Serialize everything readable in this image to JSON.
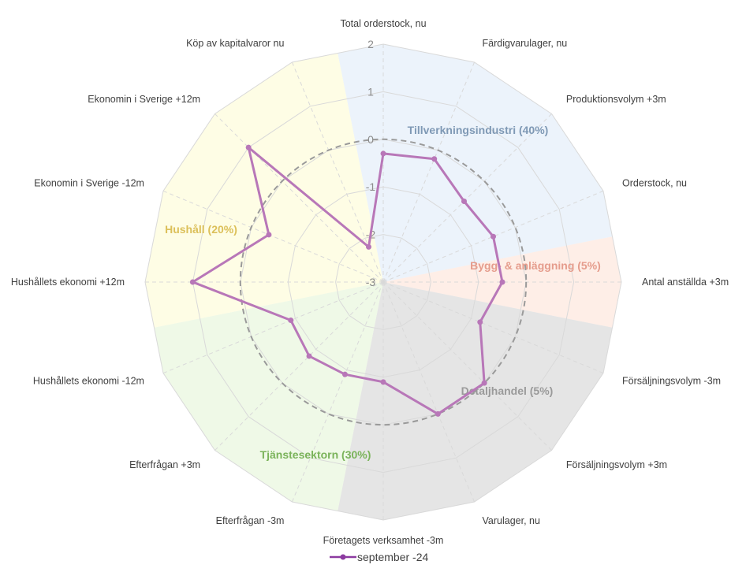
{
  "chart_data": {
    "type": "radar",
    "axes": [
      "Total orderstock, nu",
      "Färdigvarulager, nu",
      "Produktionsvolym +3m",
      "Orderstock, nu",
      "Antal anställda +3m",
      "Försäljningsvolym -3m",
      "Försäljningsvolym +3m",
      "Varulager, nu",
      "Företagets verksamhet -3m",
      "Efterfrågan -3m",
      "Efterfrågan +3m",
      "Hushållets ekonomi -12m",
      "Hushållets ekonomi +12m",
      "Ekonomin i Sverige -12m",
      "Ekonomin i Sverige +12m",
      "Köp av kapitalvaror nu"
    ],
    "ticks": [
      "2",
      "1",
      "0",
      "-1",
      "-2",
      "-3"
    ],
    "rmin": -3,
    "rmax": 2,
    "series": [
      {
        "name": "september -24",
        "color": "#b877b8",
        "values": [
          -0.3,
          -0.2,
          -0.6,
          -0.5,
          -0.5,
          -0.8,
          0.0,
          0.0,
          -0.9,
          -0.9,
          -0.8,
          -0.9,
          1.0,
          -0.4,
          1.0,
          -2.2
        ]
      }
    ],
    "reference_ring": 0,
    "sectors": [
      {
        "label": "Tillverkningsindustri (40%)",
        "color": "#7f99b5",
        "fill": "#dce9f7"
      },
      {
        "label": "Bygg- & anläggning (5%)",
        "color": "#e59c8c",
        "fill": "#fde0d3"
      },
      {
        "label": "Detaljhandel (5%)",
        "color": "#9a9a9a",
        "fill": "#cfcfcf"
      },
      {
        "label": "Tjänstesektorn (30%)",
        "color": "#7ab35a",
        "fill": "#e2f4d4"
      },
      {
        "label": "Hushåll (20%)",
        "color": "#dcc05a",
        "fill": "#fefcd0"
      }
    ],
    "legend": {
      "position": "bottom",
      "label": "september -24"
    }
  }
}
